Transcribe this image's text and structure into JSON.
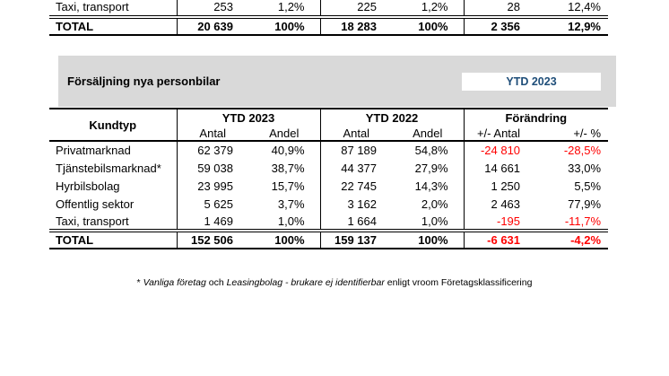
{
  "colors": {
    "accent_blue": "#1F4E79",
    "negative_red": "#FF0000",
    "section_bar_gray": "#D9D9D9",
    "border_black": "#000000"
  },
  "previous_table": {
    "rows": [
      {
        "label": "Taxi, transport",
        "values": [
          "253",
          "1,2%",
          "225",
          "1,2%",
          "28",
          "12,4%"
        ]
      }
    ],
    "total": {
      "label": "TOTAL",
      "values": [
        "20 639",
        "100%",
        "18 283",
        "100%",
        "2 356",
        "12,9%"
      ]
    }
  },
  "section": {
    "title": "Försäljning nya personbilar",
    "badge_label": "YTD 2023"
  },
  "sales_table": {
    "corner_header": "Kundtyp",
    "groups": [
      {
        "label": "YTD 2023",
        "subheaders": [
          "Antal",
          "Andel"
        ]
      },
      {
        "label": "YTD 2022",
        "subheaders": [
          "Antal",
          "Andel"
        ]
      },
      {
        "label": "Förändring",
        "subheaders": [
          "+/- Antal",
          "+/- %"
        ]
      }
    ],
    "rows": [
      {
        "label": "Privatmarknad",
        "values": [
          "62 379",
          "40,9%",
          "87 189",
          "54,8%",
          "-24 810",
          "-28,5%"
        ]
      },
      {
        "label": "Tjänstebilsmarknad*",
        "values": [
          "59 038",
          "38,7%",
          "44 377",
          "27,9%",
          "14 661",
          "33,0%"
        ]
      },
      {
        "label": "Hyrbilsbolag",
        "values": [
          "23 995",
          "15,7%",
          "22 745",
          "14,3%",
          "1 250",
          "5,5%"
        ]
      },
      {
        "label": "Offentlig sektor",
        "values": [
          "5 625",
          "3,7%",
          "3 162",
          "2,0%",
          "2 463",
          "77,9%"
        ]
      },
      {
        "label": "Taxi, transport",
        "values": [
          "1 469",
          "1,0%",
          "1 664",
          "1,0%",
          "-195",
          "-11,7%"
        ]
      }
    ],
    "total": {
      "label": "TOTAL",
      "values": [
        "152 506",
        "100%",
        "159 137",
        "100%",
        "-6 631",
        "-4,2%"
      ]
    }
  },
  "footnote": {
    "segments": [
      {
        "text": "* ",
        "italic": false
      },
      {
        "text": "Vanliga företag",
        "italic": true
      },
      {
        "text": " och ",
        "italic": false
      },
      {
        "text": "Leasingbolag - brukare ej identifierbar",
        "italic": true
      },
      {
        "text": " enligt vroom Företagsklassificering",
        "italic": false
      }
    ]
  }
}
